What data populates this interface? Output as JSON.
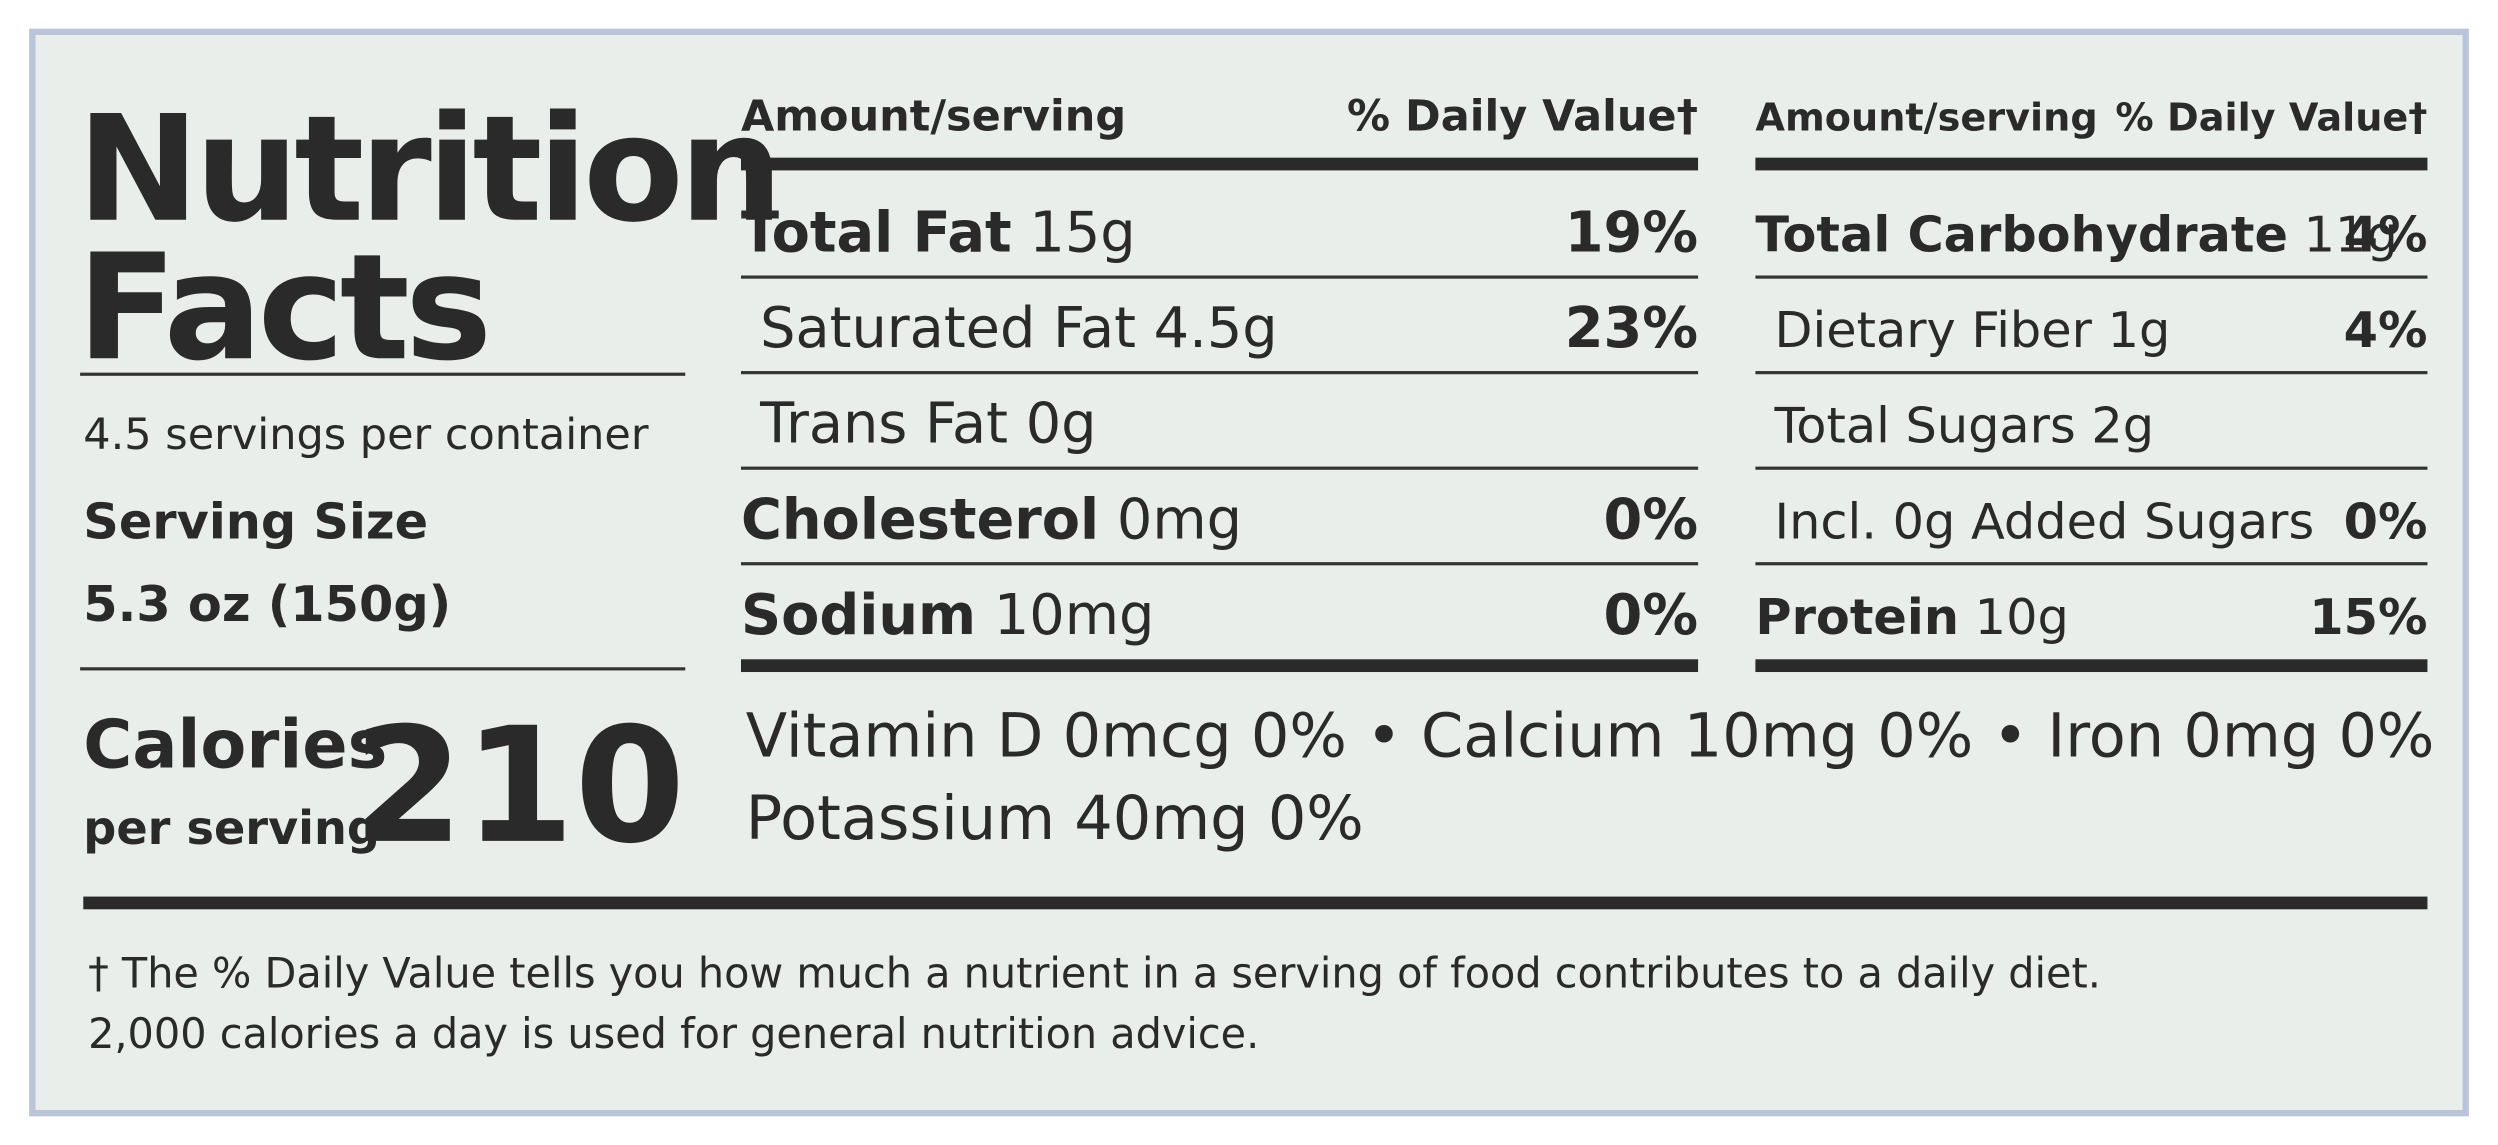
{
  "header": {
    "title_lines": [
      "Nutrition",
      "Facts"
    ],
    "servings": "4.5 servings per container",
    "serving_size_label": "Serving Size",
    "serving_size": "5.3 oz (150g)",
    "calories_label": "Calories",
    "calories_sublabel": "per serving",
    "calories": "210"
  },
  "left_table": {
    "header": [
      "Amount/serving",
      "% Daily Value†"
    ],
    "rows": [
      {
        "name": "Total Fat",
        "amount": "15g",
        "dv": "19%",
        "bold": true
      },
      {
        "name": "Saturated Fat",
        "amount": "4.5g",
        "dv": "23%",
        "bold": false
      },
      {
        "name": "Trans Fat",
        "amount": "0g",
        "bold": false
      },
      {
        "name": "Cholesterol",
        "amount": "0mg",
        "dv": "0%",
        "bold": true
      },
      {
        "name": "Sodium",
        "amount": "10mg",
        "dv": "0%",
        "bold": true
      }
    ]
  },
  "right_table": {
    "header": [
      "Amount/serving",
      "% Daily Value†"
    ],
    "rows": [
      {
        "name": "Total Carbohydrate",
        "amount": "11g",
        "dv": "4%",
        "bold": true
      },
      {
        "name": "Dietary Fiber",
        "amount": "1g",
        "dv": "4%",
        "bold": false
      },
      {
        "name": "Total Sugars",
        "amount": "2g",
        "bold": false
      },
      {
        "name": "Incl. 0g Added Sugars",
        "dv": "0%",
        "bold": false
      },
      {
        "name": "Protein",
        "amount": "10g",
        "dv": "15%",
        "bold": true
      }
    ]
  },
  "vitamins": [
    "Vitamin D 0mcg 0% • Calcium 10mg 0% • Iron 0mg 0%",
    "Potassium 40mg 0%"
  ],
  "footnote": [
    "† The % Daily Value tells you how much a nutrient in a serving of food contributes to a daily diet.",
    "2,000 calories a day is used for general nutrition advice."
  ]
}
